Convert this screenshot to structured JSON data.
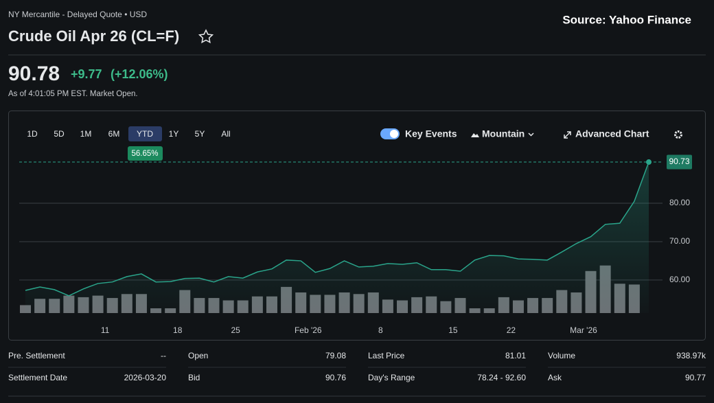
{
  "header": {
    "exchange": "NY Mercantile - Delayed Quote • USD",
    "title": "Crude Oil Apr 26 (CL=F)",
    "source": "Source: Yahoo Finance"
  },
  "quote": {
    "price": "90.78",
    "change": "+9.77",
    "change_pct": "(+12.06%)",
    "as_of": "As of 4:01:05 PM EST. Market Open."
  },
  "toolbar": {
    "ranges": [
      "1D",
      "5D",
      "1M",
      "6M",
      "YTD",
      "1Y",
      "5Y",
      "All"
    ],
    "selected": 4,
    "range_change": "56.65%",
    "key_events": "Key Events",
    "chart_style": "Mountain",
    "advanced": "Advanced Chart"
  },
  "chart_data": {
    "type": "area",
    "categories": [
      null,
      null,
      null,
      null,
      null,
      null,
      "11",
      null,
      null,
      null,
      null,
      "18",
      null,
      null,
      null,
      "25",
      null,
      null,
      null,
      null,
      "Feb '26",
      null,
      null,
      null,
      null,
      "8",
      null,
      null,
      null,
      null,
      "15",
      null,
      null,
      null,
      "22",
      null,
      null,
      null,
      null,
      "Mar '26",
      null,
      null,
      null,
      null
    ],
    "values": [
      57.3,
      58.2,
      57.5,
      55.9,
      57.7,
      59.1,
      59.5,
      60.9,
      61.6,
      59.5,
      59.6,
      60.4,
      60.5,
      59.5,
      60.9,
      60.5,
      62.1,
      62.9,
      65.2,
      65.0,
      62.0,
      63.0,
      65.0,
      63.4,
      63.6,
      64.3,
      64.1,
      64.5,
      62.7,
      62.7,
      62.3,
      65.2,
      66.4,
      66.3,
      65.5,
      65.4,
      65.2,
      67.3,
      69.5,
      71.3,
      74.5,
      74.8,
      80.5,
      90.73
    ],
    "color": "#2aa58b",
    "volume": [
      100,
      180,
      180,
      220,
      200,
      220,
      190,
      240,
      240,
      60,
      60,
      290,
      190,
      190,
      160,
      160,
      210,
      210,
      330,
      260,
      230,
      230,
      260,
      240,
      260,
      170,
      160,
      200,
      210,
      150,
      190,
      60,
      60,
      200,
      160,
      190,
      190,
      290,
      260,
      530,
      600,
      370,
      360,
      null
    ],
    "volume_color": "#6d7175",
    "volume_lim": [
      0,
      2000
    ],
    "ylim": [
      51.4,
      92.7
    ],
    "yticks": [
      {
        "value": 60,
        "label": "60.00"
      },
      {
        "value": 70,
        "label": "70.00"
      },
      {
        "value": 80,
        "label": "80.00"
      }
    ],
    "grid": true
  },
  "stats": [
    [
      "Pre. Settlement",
      "--"
    ],
    [
      "Settlement Date",
      "2026-03-20"
    ],
    [
      "Open",
      "79.08"
    ],
    [
      "Bid",
      "90.76"
    ],
    [
      "Last Price",
      "81.01"
    ],
    [
      "Day's Range",
      "78.24 - 92.60"
    ],
    [
      "Volume",
      "938.97k"
    ],
    [
      "Ask",
      "90.77"
    ]
  ]
}
